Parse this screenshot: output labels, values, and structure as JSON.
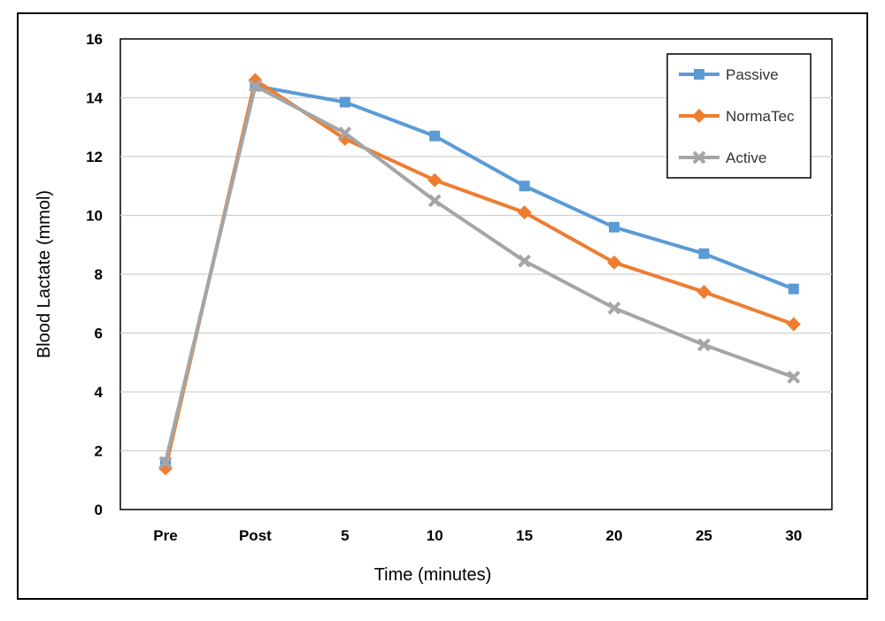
{
  "chart_data": {
    "type": "line",
    "title": "",
    "xlabel": "Time (minutes)",
    "ylabel": "Blood Lactate (mmol)",
    "categories": [
      "Pre",
      "Post",
      "5",
      "10",
      "15",
      "20",
      "25",
      "30"
    ],
    "ylim": [
      0,
      16
    ],
    "yticks": [
      0,
      2,
      4,
      6,
      8,
      10,
      12,
      14,
      16
    ],
    "grid": true,
    "legend_position": "top-right",
    "series": [
      {
        "name": "Passive",
        "color": "#5B9BD5",
        "marker": "square",
        "values": [
          1.6,
          14.4,
          13.85,
          12.7,
          11.0,
          9.6,
          8.7,
          7.5
        ]
      },
      {
        "name": "NormaTec",
        "color": "#ED7D31",
        "marker": "diamond",
        "values": [
          1.4,
          14.6,
          12.6,
          11.2,
          10.1,
          8.4,
          7.4,
          6.3
        ]
      },
      {
        "name": "Active",
        "color": "#A5A5A5",
        "marker": "x",
        "values": [
          1.6,
          14.4,
          12.8,
          10.5,
          8.45,
          6.85,
          5.6,
          4.5
        ]
      }
    ]
  }
}
